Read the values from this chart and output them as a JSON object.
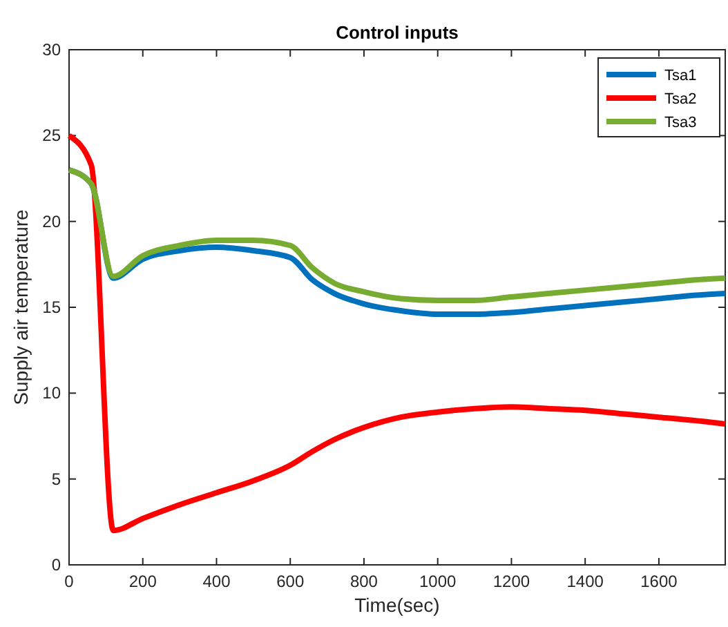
{
  "chart_data": {
    "type": "line",
    "title": "Control inputs",
    "xlabel": "Time(sec)",
    "ylabel": "Supply air temperature",
    "x": [
      0,
      60,
      120,
      200,
      300,
      400,
      500,
      600,
      660,
      720,
      800,
      900,
      1000,
      1100,
      1200,
      1300,
      1400,
      1500,
      1600,
      1700,
      1780
    ],
    "series": [
      {
        "name": "Tsa1",
        "color": "#0072bd",
        "values": [
          23,
          22.2,
          16.7,
          17.8,
          18.3,
          18.5,
          18.3,
          17.9,
          16.6,
          15.8,
          15.2,
          14.8,
          14.6,
          14.6,
          14.7,
          14.9,
          15.1,
          15.3,
          15.5,
          15.7,
          15.8
        ]
      },
      {
        "name": "Tsa2",
        "color": "#ff0000",
        "values": [
          25,
          23.3,
          2.0,
          2.7,
          3.5,
          4.2,
          4.9,
          5.8,
          6.6,
          7.3,
          8.0,
          8.6,
          8.9,
          9.1,
          9.2,
          9.1,
          9.0,
          8.8,
          8.6,
          8.4,
          8.2
        ]
      },
      {
        "name": "Tsa3",
        "color": "#77ac30",
        "values": [
          23,
          22.2,
          16.8,
          18.0,
          18.6,
          18.9,
          18.9,
          18.6,
          17.3,
          16.4,
          15.9,
          15.5,
          15.4,
          15.4,
          15.6,
          15.8,
          16.0,
          16.2,
          16.4,
          16.6,
          16.7
        ]
      }
    ],
    "xlim": [
      0,
      1780
    ],
    "xticks": [
      0,
      200,
      400,
      600,
      800,
      1000,
      1200,
      1400,
      1600
    ],
    "ylim": [
      0,
      30
    ],
    "yticks": [
      0,
      5,
      10,
      15,
      20,
      25,
      30
    ],
    "grid": false,
    "legend": "top right",
    "marker": "none",
    "line_style": "solid"
  }
}
